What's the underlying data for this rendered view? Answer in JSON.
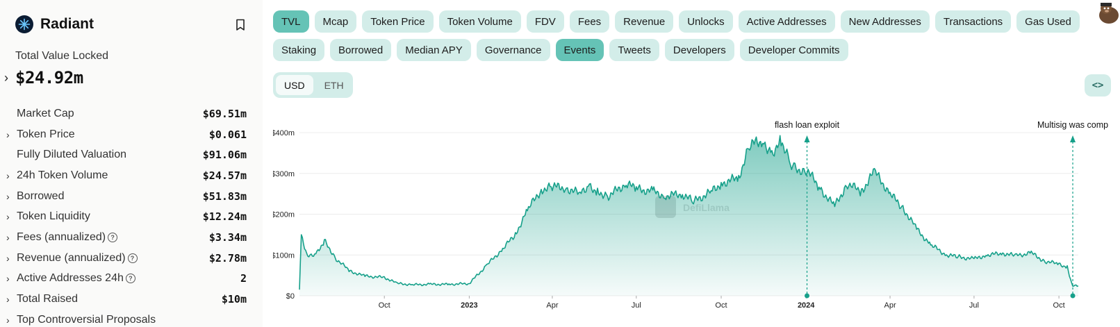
{
  "protocol": {
    "name": "Radiant",
    "tvl_label": "Total Value Locked",
    "tvl_value": "$24.92m"
  },
  "metrics": [
    {
      "label": "Market Cap",
      "value": "$69.51m",
      "expandable": false,
      "info": false
    },
    {
      "label": "Token Price",
      "value": "$0.061",
      "expandable": true,
      "info": false
    },
    {
      "label": "Fully Diluted Valuation",
      "value": "$91.06m",
      "expandable": false,
      "info": false
    },
    {
      "label": "24h Token Volume",
      "value": "$24.57m",
      "expandable": true,
      "info": false
    },
    {
      "label": "Borrowed",
      "value": "$51.83m",
      "expandable": true,
      "info": false
    },
    {
      "label": "Token Liquidity",
      "value": "$12.24m",
      "expandable": true,
      "info": false
    },
    {
      "label": "Fees (annualized)",
      "value": "$3.34m",
      "expandable": true,
      "info": true
    },
    {
      "label": "Revenue (annualized)",
      "value": "$2.78m",
      "expandable": true,
      "info": true
    },
    {
      "label": "Active Addresses 24h",
      "value": "2",
      "expandable": true,
      "info": true
    },
    {
      "label": "Total Raised",
      "value": "$10m",
      "expandable": true,
      "info": false
    },
    {
      "label": "Top Controversial Proposals",
      "value": "",
      "expandable": true,
      "info": false
    }
  ],
  "tabs_row1": [
    {
      "label": "TVL",
      "active": true
    },
    {
      "label": "Mcap",
      "active": false
    },
    {
      "label": "Token Price",
      "active": false
    },
    {
      "label": "Token Volume",
      "active": false
    },
    {
      "label": "FDV",
      "active": false
    },
    {
      "label": "Fees",
      "active": false
    },
    {
      "label": "Revenue",
      "active": false
    },
    {
      "label": "Unlocks",
      "active": false
    },
    {
      "label": "Active Addresses",
      "active": false
    },
    {
      "label": "New Addresses",
      "active": false
    },
    {
      "label": "Transactions",
      "active": false
    },
    {
      "label": "Gas Used",
      "active": false
    }
  ],
  "tabs_row2": [
    {
      "label": "Staking",
      "active": false
    },
    {
      "label": "Borrowed",
      "active": false
    },
    {
      "label": "Median APY",
      "active": false
    },
    {
      "label": "Governance",
      "active": false
    },
    {
      "label": "Events",
      "active": true
    },
    {
      "label": "Tweets",
      "active": false
    },
    {
      "label": "Developers",
      "active": false
    },
    {
      "label": "Developer Commits",
      "active": false
    }
  ],
  "currency": {
    "options": [
      "USD",
      "ETH"
    ],
    "selected": "USD"
  },
  "embed_icon": "code-brackets-icon",
  "watermark": "DefiLlama",
  "colors": {
    "accent": "#16a08a",
    "tab_bg": "#d3ede9",
    "tab_active": "#65c3b6"
  },
  "chart_data": {
    "type": "area",
    "series": [
      {
        "name": "TVL",
        "unit": "USD"
      }
    ],
    "x": [
      "2022-07-01",
      "2022-07-03",
      "2022-07-10",
      "2022-07-20",
      "2022-07-28",
      "2022-08-10",
      "2022-08-25",
      "2022-09-10",
      "2022-10-01",
      "2022-10-15",
      "2022-11-01",
      "2022-11-20",
      "2022-12-10",
      "2023-01-01",
      "2023-01-20",
      "2023-02-05",
      "2023-02-20",
      "2023-03-05",
      "2023-03-20",
      "2023-04-01",
      "2023-04-15",
      "2023-05-01",
      "2023-05-10",
      "2023-05-20",
      "2023-06-01",
      "2023-06-20",
      "2023-07-01",
      "2023-07-20",
      "2023-08-01",
      "2023-08-20",
      "2023-09-01",
      "2023-09-20",
      "2023-10-01",
      "2023-10-20",
      "2023-11-01",
      "2023-11-15",
      "2023-11-25",
      "2023-12-05",
      "2023-12-15",
      "2023-12-20",
      "2024-01-01",
      "2024-01-02",
      "2024-01-15",
      "2024-02-01",
      "2024-02-15",
      "2024-03-01",
      "2024-03-15",
      "2024-04-01",
      "2024-04-15",
      "2024-05-01",
      "2024-05-15",
      "2024-06-01",
      "2024-06-15",
      "2024-07-01",
      "2024-07-15",
      "2024-08-01",
      "2024-08-15",
      "2024-09-01",
      "2024-09-15",
      "2024-10-01",
      "2024-10-10",
      "2024-10-16",
      "2024-10-17",
      "2024-10-22"
    ],
    "y": [
      15,
      148,
      95,
      105,
      135,
      90,
      60,
      48,
      45,
      30,
      27,
      28,
      28,
      30,
      75,
      112,
      150,
      210,
      260,
      268,
      265,
      250,
      270,
      255,
      245,
      275,
      262,
      255,
      245,
      250,
      230,
      255,
      275,
      290,
      370,
      380,
      350,
      382,
      325,
      312,
      305,
      310,
      265,
      220,
      275,
      255,
      305,
      250,
      215,
      160,
      125,
      100,
      95,
      90,
      100,
      104,
      98,
      105,
      85,
      78,
      70,
      22,
      24,
      24
    ],
    "xticks": [
      {
        "date": "2022-10-01",
        "label": "Oct",
        "bold": false
      },
      {
        "date": "2023-01-01",
        "label": "2023",
        "bold": true
      },
      {
        "date": "2023-04-01",
        "label": "Apr",
        "bold": false
      },
      {
        "date": "2023-07-01",
        "label": "Jul",
        "bold": false
      },
      {
        "date": "2023-10-01",
        "label": "Oct",
        "bold": false
      },
      {
        "date": "2024-01-01",
        "label": "2024",
        "bold": true
      },
      {
        "date": "2024-04-01",
        "label": "Apr",
        "bold": false
      },
      {
        "date": "2024-07-01",
        "label": "Jul",
        "bold": false
      },
      {
        "date": "2024-10-01",
        "label": "Oct",
        "bold": false
      }
    ],
    "yticks": [
      {
        "value": 0,
        "label": "$0"
      },
      {
        "value": 100,
        "label": "$100m"
      },
      {
        "value": 200,
        "label": "$200m"
      },
      {
        "value": 300,
        "label": "$300m"
      },
      {
        "value": 400,
        "label": "$400m"
      }
    ],
    "ylim": [
      0,
      400
    ],
    "xlim": [
      "2022-07-01",
      "2024-10-22"
    ],
    "grid": true,
    "events": [
      {
        "date": "2024-01-02",
        "label": "flash loan exploit"
      },
      {
        "date": "2024-10-16",
        "label": "Multisig was comp"
      }
    ]
  }
}
